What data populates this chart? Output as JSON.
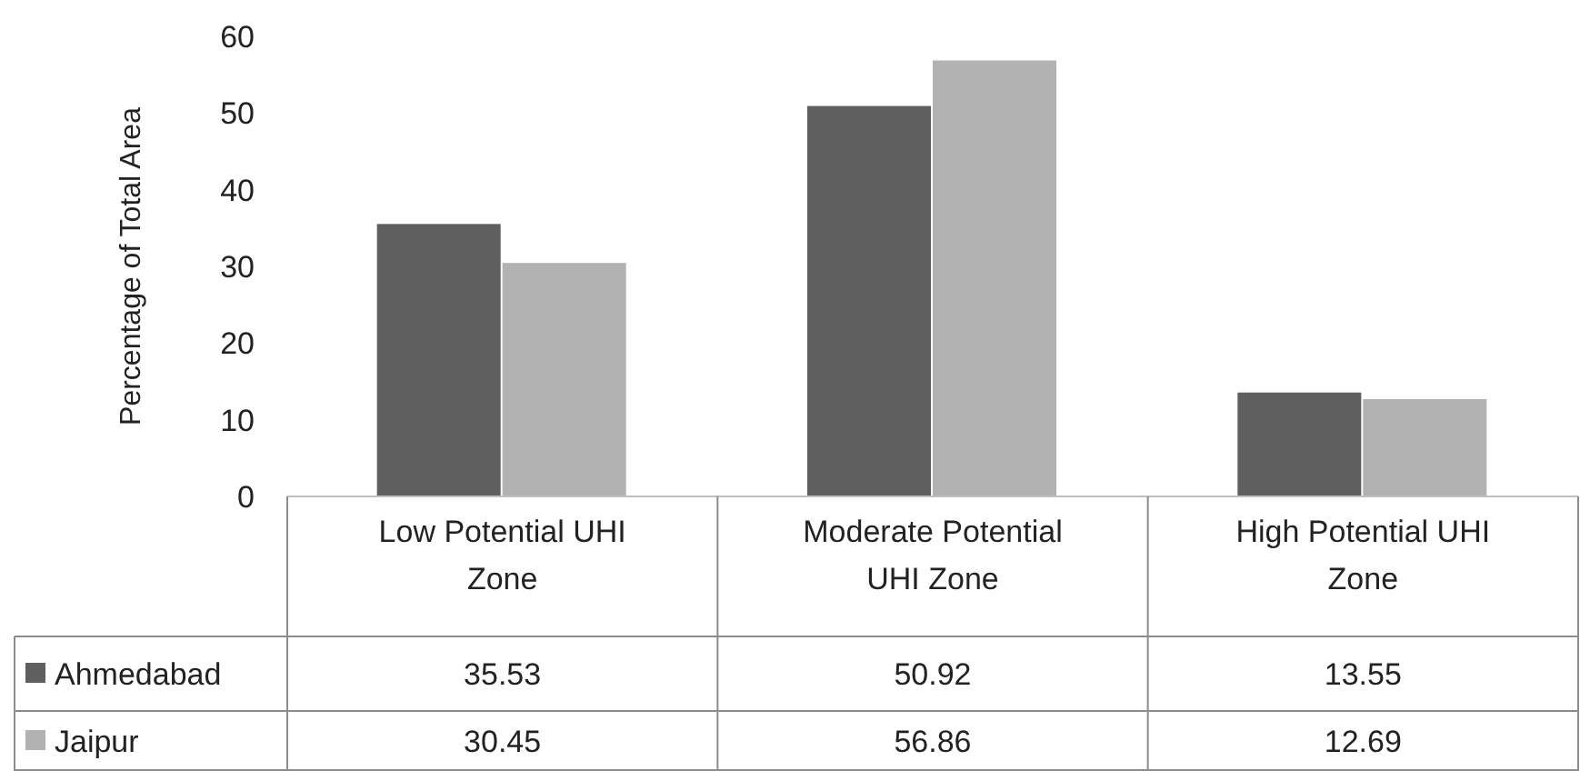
{
  "chart_data": {
    "type": "bar",
    "ylabel": "Percentage of Total Area",
    "categories": [
      "Low Potential UHI Zone",
      "Moderate Potential UHI Zone",
      "High Potential UHI Zone"
    ],
    "series": [
      {
        "name": "Ahmedabad",
        "color": "#5f5f5f",
        "values": [
          35.53,
          50.92,
          13.55
        ]
      },
      {
        "name": "Jaipur",
        "color": "#b2b2b2",
        "values": [
          30.45,
          56.86,
          12.69
        ]
      }
    ],
    "ylim": [
      0,
      60
    ],
    "yticks": [
      0,
      10,
      20,
      30,
      40,
      50,
      60
    ],
    "data_labels": true,
    "legend": "bottom left",
    "grid": false
  }
}
